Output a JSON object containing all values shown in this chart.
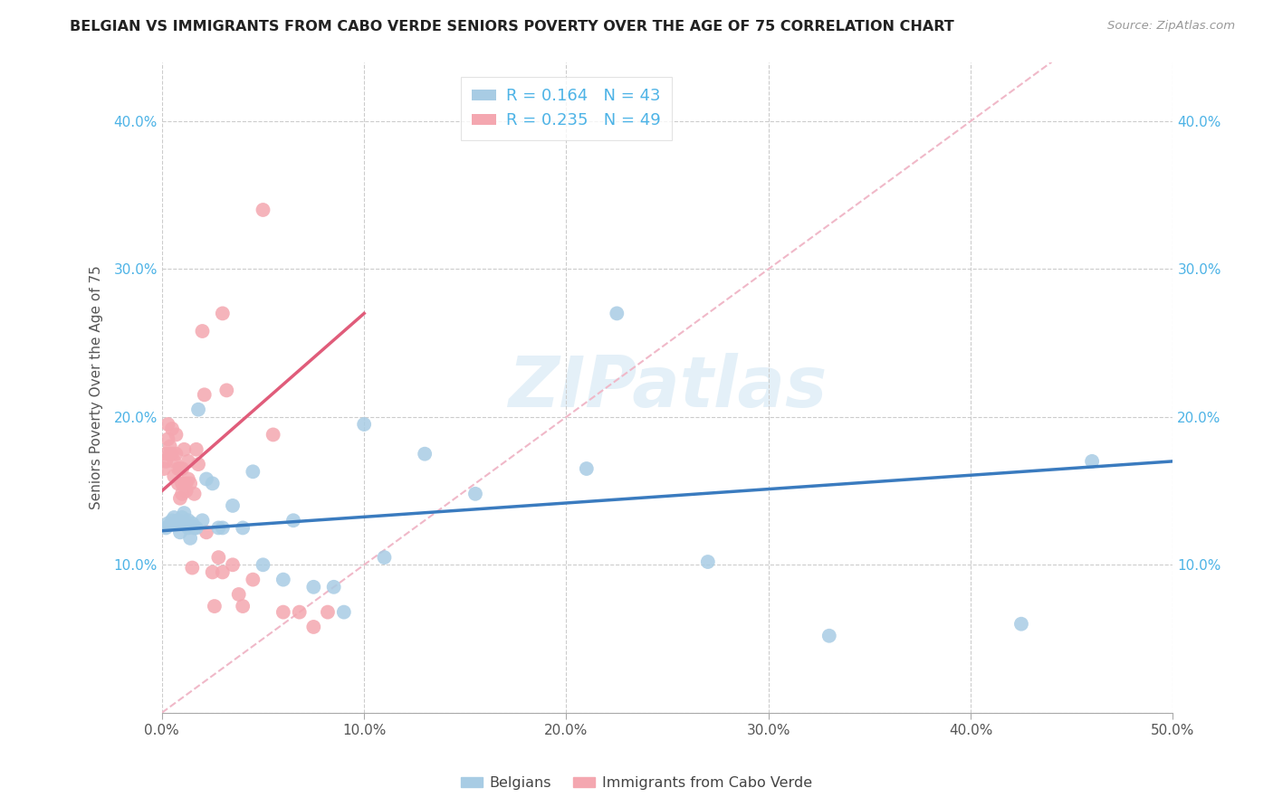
{
  "title": "BELGIAN VS IMMIGRANTS FROM CABO VERDE SENIORS POVERTY OVER THE AGE OF 75 CORRELATION CHART",
  "source": "Source: ZipAtlas.com",
  "ylabel": "Seniors Poverty Over the Age of 75",
  "xlim": [
    0,
    0.5
  ],
  "ylim": [
    0,
    0.44
  ],
  "blue_color": "#a8cce4",
  "blue_line_color": "#3a7bbf",
  "pink_color": "#f4a7b0",
  "pink_line_color": "#e05c7a",
  "diag_color": "#f0b8c8",
  "legend_blue_r": "R = 0.164",
  "legend_blue_n": "N = 43",
  "legend_pink_r": "R = 0.235",
  "legend_pink_n": "N = 49",
  "legend_label_blue": "Belgians",
  "legend_label_pink": "Immigrants from Cabo Verde",
  "watermark": "ZIPatlas",
  "tick_color": "#4db3e6",
  "blue_x": [
    0.002,
    0.003,
    0.004,
    0.005,
    0.006,
    0.007,
    0.008,
    0.009,
    0.01,
    0.01,
    0.011,
    0.012,
    0.013,
    0.013,
    0.014,
    0.015,
    0.016,
    0.017,
    0.018,
    0.02,
    0.022,
    0.025,
    0.028,
    0.03,
    0.035,
    0.04,
    0.045,
    0.05,
    0.06,
    0.065,
    0.075,
    0.085,
    0.09,
    0.1,
    0.11,
    0.13,
    0.155,
    0.21,
    0.225,
    0.27,
    0.33,
    0.425,
    0.46
  ],
  "blue_y": [
    0.125,
    0.128,
    0.127,
    0.13,
    0.132,
    0.128,
    0.13,
    0.122,
    0.132,
    0.128,
    0.135,
    0.127,
    0.13,
    0.125,
    0.118,
    0.128,
    0.125,
    0.125,
    0.205,
    0.13,
    0.158,
    0.155,
    0.125,
    0.125,
    0.14,
    0.125,
    0.163,
    0.1,
    0.09,
    0.13,
    0.085,
    0.085,
    0.068,
    0.195,
    0.105,
    0.175,
    0.148,
    0.165,
    0.27,
    0.102,
    0.052,
    0.06,
    0.17
  ],
  "pink_x": [
    0.001,
    0.002,
    0.002,
    0.003,
    0.003,
    0.004,
    0.004,
    0.005,
    0.005,
    0.006,
    0.006,
    0.007,
    0.007,
    0.008,
    0.008,
    0.009,
    0.009,
    0.01,
    0.01,
    0.01,
    0.011,
    0.012,
    0.012,
    0.013,
    0.013,
    0.014,
    0.015,
    0.016,
    0.017,
    0.018,
    0.02,
    0.021,
    0.022,
    0.025,
    0.026,
    0.028,
    0.03,
    0.03,
    0.032,
    0.035,
    0.038,
    0.04,
    0.045,
    0.05,
    0.055,
    0.06,
    0.068,
    0.075,
    0.082
  ],
  "pink_y": [
    0.165,
    0.175,
    0.17,
    0.195,
    0.185,
    0.18,
    0.175,
    0.192,
    0.175,
    0.17,
    0.16,
    0.188,
    0.175,
    0.165,
    0.155,
    0.165,
    0.145,
    0.165,
    0.155,
    0.148,
    0.178,
    0.155,
    0.15,
    0.17,
    0.158,
    0.155,
    0.098,
    0.148,
    0.178,
    0.168,
    0.258,
    0.215,
    0.122,
    0.095,
    0.072,
    0.105,
    0.27,
    0.095,
    0.218,
    0.1,
    0.08,
    0.072,
    0.09,
    0.34,
    0.188,
    0.068,
    0.068,
    0.058,
    0.068
  ],
  "blue_trend_x0": 0.0,
  "blue_trend_y0": 0.123,
  "blue_trend_x1": 0.5,
  "blue_trend_y1": 0.17,
  "pink_trend_x0": 0.0,
  "pink_trend_y0": 0.15,
  "pink_trend_x1": 0.1,
  "pink_trend_y1": 0.27
}
